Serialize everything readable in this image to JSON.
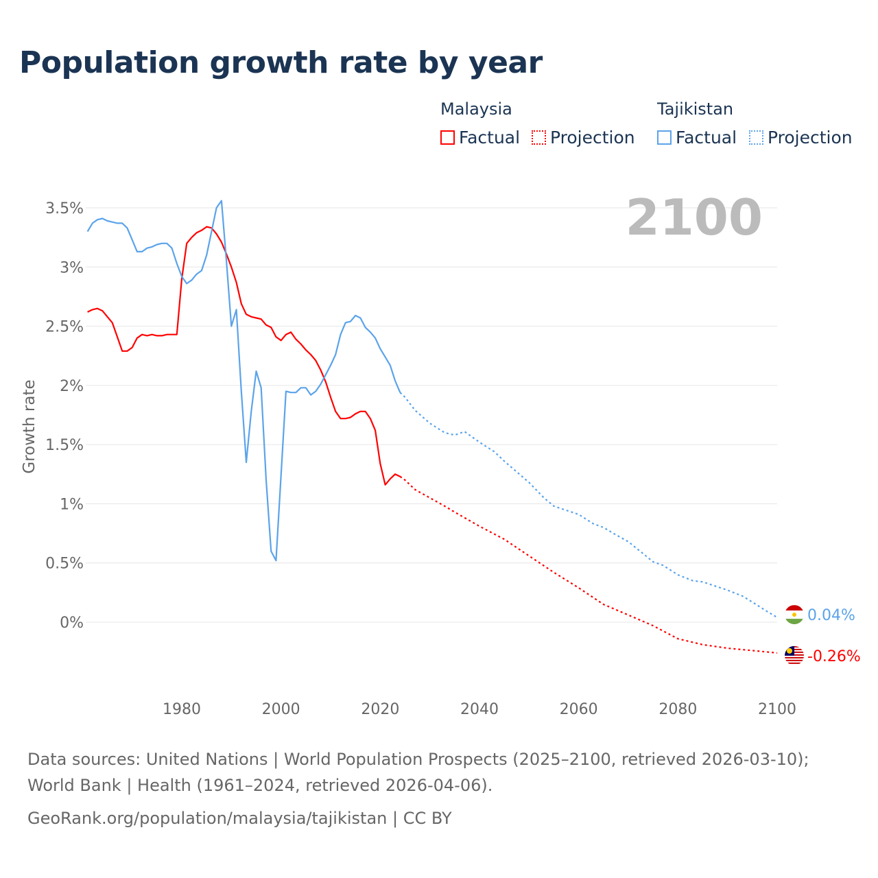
{
  "title": "Population growth rate by year",
  "legend": {
    "groups": [
      {
        "country": "Malaysia",
        "factual": "Factual",
        "projection": "Projection",
        "color": "#ff0000"
      },
      {
        "country": "Tajikistan",
        "factual": "Factual",
        "projection": "Projection",
        "color": "#5ba3ea"
      }
    ]
  },
  "year_label": "2100",
  "footer": {
    "sources": "Data sources: United Nations | World Population Prospects (2025–2100, retrieved 2026-03-10); World Bank | Health (1961–2024, retrieved 2026-04-06).",
    "url": "GeoRank.org/population/malaysia/tajikistan | CC BY"
  },
  "chart_data": {
    "type": "line",
    "title": "Population growth rate by year",
    "xlabel": "",
    "ylabel": "Growth rate",
    "xlim": [
      1961,
      2100
    ],
    "ylim": [
      -0.6,
      3.7
    ],
    "x_ticks": [
      1980,
      2000,
      2020,
      2040,
      2060,
      2080,
      2100
    ],
    "x_tick_labels": [
      "1980",
      "2000",
      "2020",
      "2040",
      "2060",
      "2080",
      "2100"
    ],
    "y_ticks": [
      0,
      0.5,
      1,
      1.5,
      2,
      2.5,
      3,
      3.5
    ],
    "y_tick_labels": [
      "0%",
      "0.5%",
      "1%",
      "1.5%",
      "2%",
      "2.5%",
      "3%",
      "3.5%"
    ],
    "grid": true,
    "series": [
      {
        "name": "Malaysia",
        "color": "#ff0000",
        "end_label": "-0.26%",
        "factual": {
          "x": [
            1961,
            1962,
            1963,
            1964,
            1965,
            1966,
            1967,
            1968,
            1969,
            1970,
            1971,
            1972,
            1973,
            1974,
            1975,
            1976,
            1977,
            1978,
            1979,
            1980,
            1981,
            1982,
            1983,
            1984,
            1985,
            1986,
            1987,
            1988,
            1989,
            1990,
            1991,
            1992,
            1993,
            1994,
            1995,
            1996,
            1997,
            1998,
            1999,
            2000,
            2001,
            2002,
            2003,
            2004,
            2005,
            2006,
            2007,
            2008,
            2009,
            2010,
            2011,
            2012,
            2013,
            2014,
            2015,
            2016,
            2017,
            2018,
            2019,
            2020,
            2021,
            2022,
            2023,
            2024
          ],
          "y": [
            2.62,
            2.64,
            2.65,
            2.63,
            2.58,
            2.53,
            2.41,
            2.29,
            2.29,
            2.32,
            2.4,
            2.43,
            2.42,
            2.43,
            2.42,
            2.42,
            2.43,
            2.43,
            2.43,
            2.9,
            3.2,
            3.25,
            3.29,
            3.31,
            3.34,
            3.33,
            3.28,
            3.21,
            3.11,
            3.0,
            2.87,
            2.69,
            2.6,
            2.58,
            2.57,
            2.56,
            2.51,
            2.49,
            2.41,
            2.38,
            2.43,
            2.45,
            2.39,
            2.35,
            2.3,
            2.26,
            2.21,
            2.13,
            2.03,
            1.9,
            1.78,
            1.72,
            1.72,
            1.73,
            1.76,
            1.78,
            1.78,
            1.72,
            1.62,
            1.34,
            1.16,
            1.21,
            1.25,
            1.23
          ]
        },
        "projection": {
          "x": [
            2024,
            2025,
            2027,
            2030,
            2033,
            2035,
            2040,
            2045,
            2050,
            2055,
            2060,
            2065,
            2070,
            2075,
            2080,
            2085,
            2090,
            2095,
            2100
          ],
          "y": [
            1.23,
            1.2,
            1.12,
            1.05,
            0.98,
            0.93,
            0.81,
            0.7,
            0.56,
            0.42,
            0.29,
            0.15,
            0.06,
            -0.03,
            -0.14,
            -0.19,
            -0.22,
            -0.24,
            -0.26
          ]
        }
      },
      {
        "name": "Tajikistan",
        "color": "#5ba3ea",
        "end_label": "0.04%",
        "factual": {
          "x": [
            1961,
            1962,
            1963,
            1964,
            1965,
            1966,
            1967,
            1968,
            1969,
            1970,
            1971,
            1972,
            1973,
            1974,
            1975,
            1976,
            1977,
            1978,
            1979,
            1980,
            1981,
            1982,
            1983,
            1984,
            1985,
            1986,
            1987,
            1988,
            1989,
            1990,
            1991,
            1992,
            1993,
            1994,
            1995,
            1996,
            1997,
            1998,
            1999,
            2000,
            2001,
            2002,
            2003,
            2004,
            2005,
            2006,
            2007,
            2008,
            2009,
            2010,
            2011,
            2012,
            2013,
            2014,
            2015,
            2016,
            2017,
            2018,
            2019,
            2020,
            2021,
            2022,
            2023,
            2024
          ],
          "y": [
            3.3,
            3.37,
            3.4,
            3.41,
            3.39,
            3.38,
            3.37,
            3.37,
            3.33,
            3.23,
            3.13,
            3.13,
            3.16,
            3.17,
            3.19,
            3.2,
            3.2,
            3.16,
            3.03,
            2.92,
            2.86,
            2.89,
            2.94,
            2.97,
            3.1,
            3.3,
            3.5,
            3.56,
            3.05,
            2.5,
            2.64,
            1.95,
            1.35,
            1.78,
            2.12,
            1.98,
            1.2,
            0.6,
            0.52,
            1.24,
            1.95,
            1.94,
            1.94,
            1.98,
            1.98,
            1.92,
            1.95,
            2.01,
            2.09,
            2.17,
            2.26,
            2.43,
            2.53,
            2.54,
            2.59,
            2.57,
            2.49,
            2.45,
            2.4,
            2.31,
            2.24,
            2.17,
            2.04,
            1.94
          ]
        },
        "projection": {
          "x": [
            2024,
            2025,
            2027,
            2030,
            2033,
            2035,
            2037,
            2040,
            2043,
            2045,
            2050,
            2053,
            2055,
            2060,
            2063,
            2065,
            2067,
            2070,
            2075,
            2077,
            2080,
            2083,
            2085,
            2090,
            2093,
            2095,
            2098,
            2100
          ],
          "y": [
            1.94,
            1.9,
            1.79,
            1.68,
            1.6,
            1.58,
            1.61,
            1.52,
            1.44,
            1.36,
            1.18,
            1.05,
            0.98,
            0.91,
            0.83,
            0.8,
            0.75,
            0.68,
            0.51,
            0.48,
            0.4,
            0.35,
            0.34,
            0.27,
            0.22,
            0.17,
            0.09,
            0.04
          ]
        }
      }
    ]
  }
}
